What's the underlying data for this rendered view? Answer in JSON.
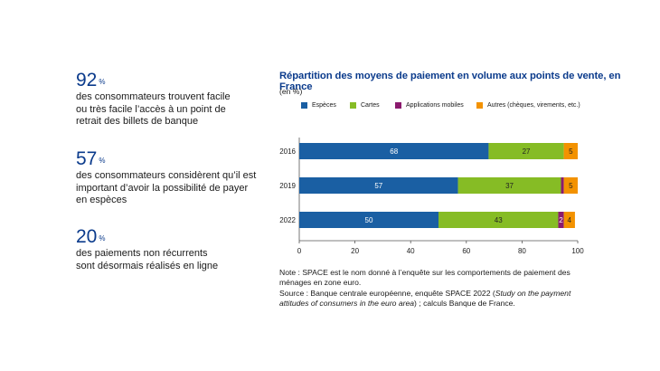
{
  "stats": [
    {
      "value": "92",
      "unit": "%",
      "lines": [
        "des consommateurs trouvent facile",
        "ou très facile l’accès à un point de",
        "retrait des billets de banque"
      ]
    },
    {
      "value": "57",
      "unit": "%",
      "lines": [
        "des consommateurs considèrent qu’il est",
        "important d’avoir la possibilité de payer",
        "en espèces"
      ]
    },
    {
      "value": "20",
      "unit": "%",
      "lines": [
        "des paiements non récurrents",
        "sont désormais réalisés en ligne"
      ]
    }
  ],
  "chart_data": {
    "type": "bar",
    "orientation": "horizontal",
    "stacked": true,
    "title": "Répartition des moyens de paiement en volume aux points de vente, en France",
    "subtitle": "(en %)",
    "categories": [
      "2016",
      "2019",
      "2022"
    ],
    "series": [
      {
        "name": "Espèces",
        "color": "#1a5fa3",
        "values": [
          68,
          57,
          50
        ],
        "labels": [
          "68",
          "57",
          "50"
        ]
      },
      {
        "name": "Cartes",
        "color": "#86bc25",
        "values": [
          27,
          37,
          43
        ],
        "labels": [
          "27",
          "37",
          "43"
        ]
      },
      {
        "name": "Applications mobiles",
        "color": "#8b1a6e",
        "values": [
          0,
          1,
          2
        ],
        "labels": [
          "",
          "",
          "2"
        ]
      },
      {
        "name": "Autres (chèques, virements, etc.)",
        "color": "#f39200",
        "values": [
          5,
          5,
          4
        ],
        "labels": [
          "5",
          "5",
          "4"
        ]
      }
    ],
    "xlim": [
      0,
      100
    ],
    "xticks": [
      0,
      20,
      40,
      60,
      80,
      100
    ],
    "legend_position": "top",
    "grid": false
  },
  "note": {
    "line1": "Note : SPACE est le nom donné à l’enquête sur les comportements de paiement des ménages en zone euro.",
    "source_prefix": "Source : Banque centrale européenne, enquête SPACE 2022 (",
    "source_italic": "Study on the payment attitudes of consumers in the euro area",
    "source_suffix": ") ; calculs Banque de France."
  }
}
